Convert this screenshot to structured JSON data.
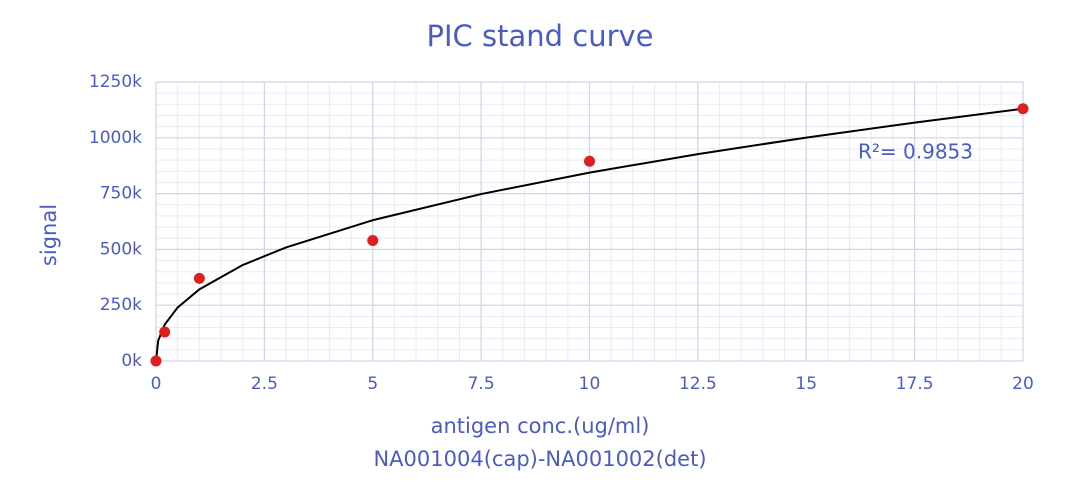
{
  "chart_data": {
    "type": "scatter",
    "title": "PIC stand curve",
    "xlabel": "antigen conc.(ug/ml)",
    "subtitle": "NA001004(cap)-NA001002(det)",
    "ylabel": "signal",
    "annotation": "R²= 0.9853",
    "series": [
      {
        "color": "#e01e1e",
        "mode": "markers",
        "x": [
          0,
          0.2,
          1,
          5,
          10,
          20
        ],
        "values": [
          0,
          130000,
          370000,
          540000,
          895000,
          1130000
        ]
      },
      {
        "color": "#000000",
        "mode": "line",
        "x": [
          0,
          0.05,
          0.2,
          0.5,
          1,
          2,
          3,
          5,
          7.5,
          10,
          12.5,
          15,
          17.5,
          20
        ],
        "values": [
          0,
          91000,
          163000,
          240000,
          321000,
          430000,
          509000,
          631000,
          748000,
          844000,
          927000,
          1001000,
          1068000,
          1130000
        ]
      }
    ],
    "xlim": [
      0,
      20
    ],
    "xticks": [
      0,
      2.5,
      5,
      7.5,
      10,
      12.5,
      15,
      17.5,
      20
    ],
    "ylim": [
      0,
      1250000
    ],
    "yticks": [
      {
        "value": 0,
        "label": "0k"
      },
      {
        "value": 250000,
        "label": "250k"
      },
      {
        "value": 500000,
        "label": "500k"
      },
      {
        "value": 750000,
        "label": "750k"
      },
      {
        "value": 1000000,
        "label": "1000k"
      },
      {
        "value": 1250000,
        "label": "1250k"
      }
    ],
    "grid": true,
    "minor_grid_divisions": 5
  }
}
